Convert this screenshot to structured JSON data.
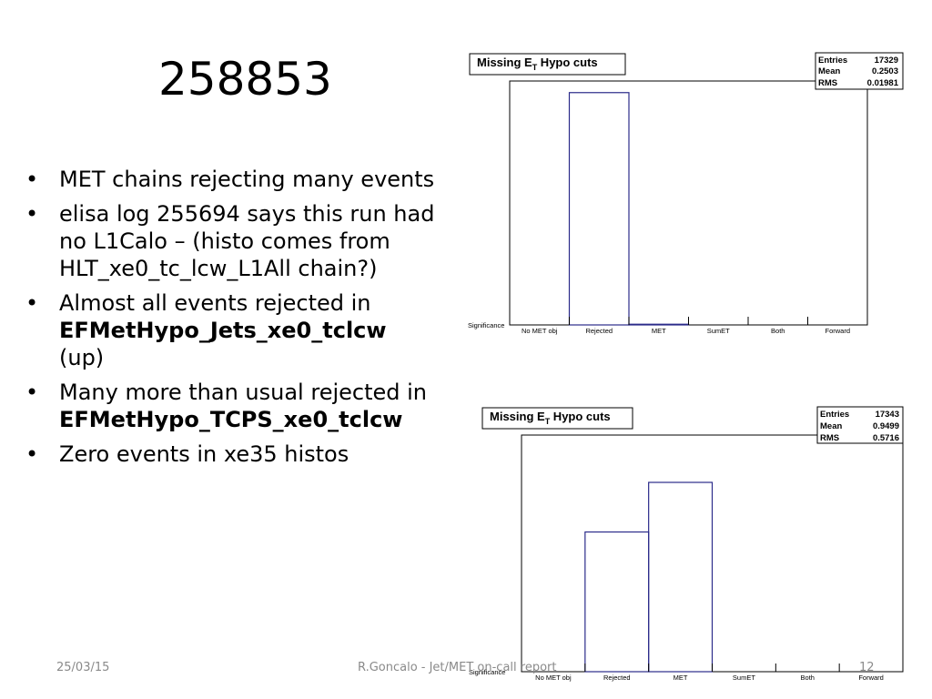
{
  "slide": {
    "title": "258853",
    "bullets": [
      {
        "parts": [
          {
            "text": "MET chains rejecting many events",
            "bold": false
          }
        ]
      },
      {
        "parts": [
          {
            "text": "elisa log 255694 says this run had no L1Calo – (histo comes from HLT_xe0_tc_lcw_L1All chain?)",
            "bold": false
          }
        ]
      },
      {
        "parts": [
          {
            "text": "Almost all events rejected in ",
            "bold": false
          },
          {
            "text": "EFMetHypo_Jets_xe0_tclcw",
            "bold": true
          },
          {
            "text": " (up)",
            "bold": false
          }
        ]
      },
      {
        "parts": [
          {
            "text": "Many more than usual rejected in ",
            "bold": false
          },
          {
            "text": "EFMetHypo_TCPS_xe0_tclcw",
            "bold": true
          }
        ]
      },
      {
        "parts": [
          {
            "text": "Zero events in xe35 histos",
            "bold": false
          }
        ]
      }
    ]
  },
  "footer": {
    "date": "25/03/15",
    "center": "R.Goncalo - Jet/MET on-call report",
    "page": "12"
  },
  "chart_data": [
    {
      "type": "bar",
      "title": "Missing E",
      "title_sub": "T",
      "title_rest": " Hypo cuts",
      "xlabel": "Significance",
      "categories": [
        "No MET obj",
        "Rejected",
        "MET",
        "SumET",
        "Both",
        "Forward"
      ],
      "values": [
        0,
        1.0,
        0.003,
        0,
        0,
        0
      ],
      "ylim": [
        0,
        1.05
      ],
      "stats": {
        "entries_label": "Entries",
        "entries": "17329",
        "mean_label": "Mean",
        "mean": "0.2503",
        "rms_label": "RMS",
        "rms": "0.01981"
      },
      "line_color": "#2b2b8a"
    },
    {
      "type": "bar",
      "title": "Missing E",
      "title_sub": "T",
      "title_rest": " Hypo cuts",
      "xlabel": "Significance",
      "categories": [
        "No MET obj",
        "Rejected",
        "MET",
        "SumET",
        "Both",
        "Forward"
      ],
      "values": [
        0,
        0.62,
        0.84,
        0,
        0,
        0
      ],
      "ylim": [
        0,
        1.05
      ],
      "stats": {
        "entries_label": "Entries",
        "entries": "17343",
        "mean_label": "Mean",
        "mean": "0.9499",
        "rms_label": "RMS",
        "rms": "0.5716"
      },
      "line_color": "#2b2b8a"
    }
  ]
}
